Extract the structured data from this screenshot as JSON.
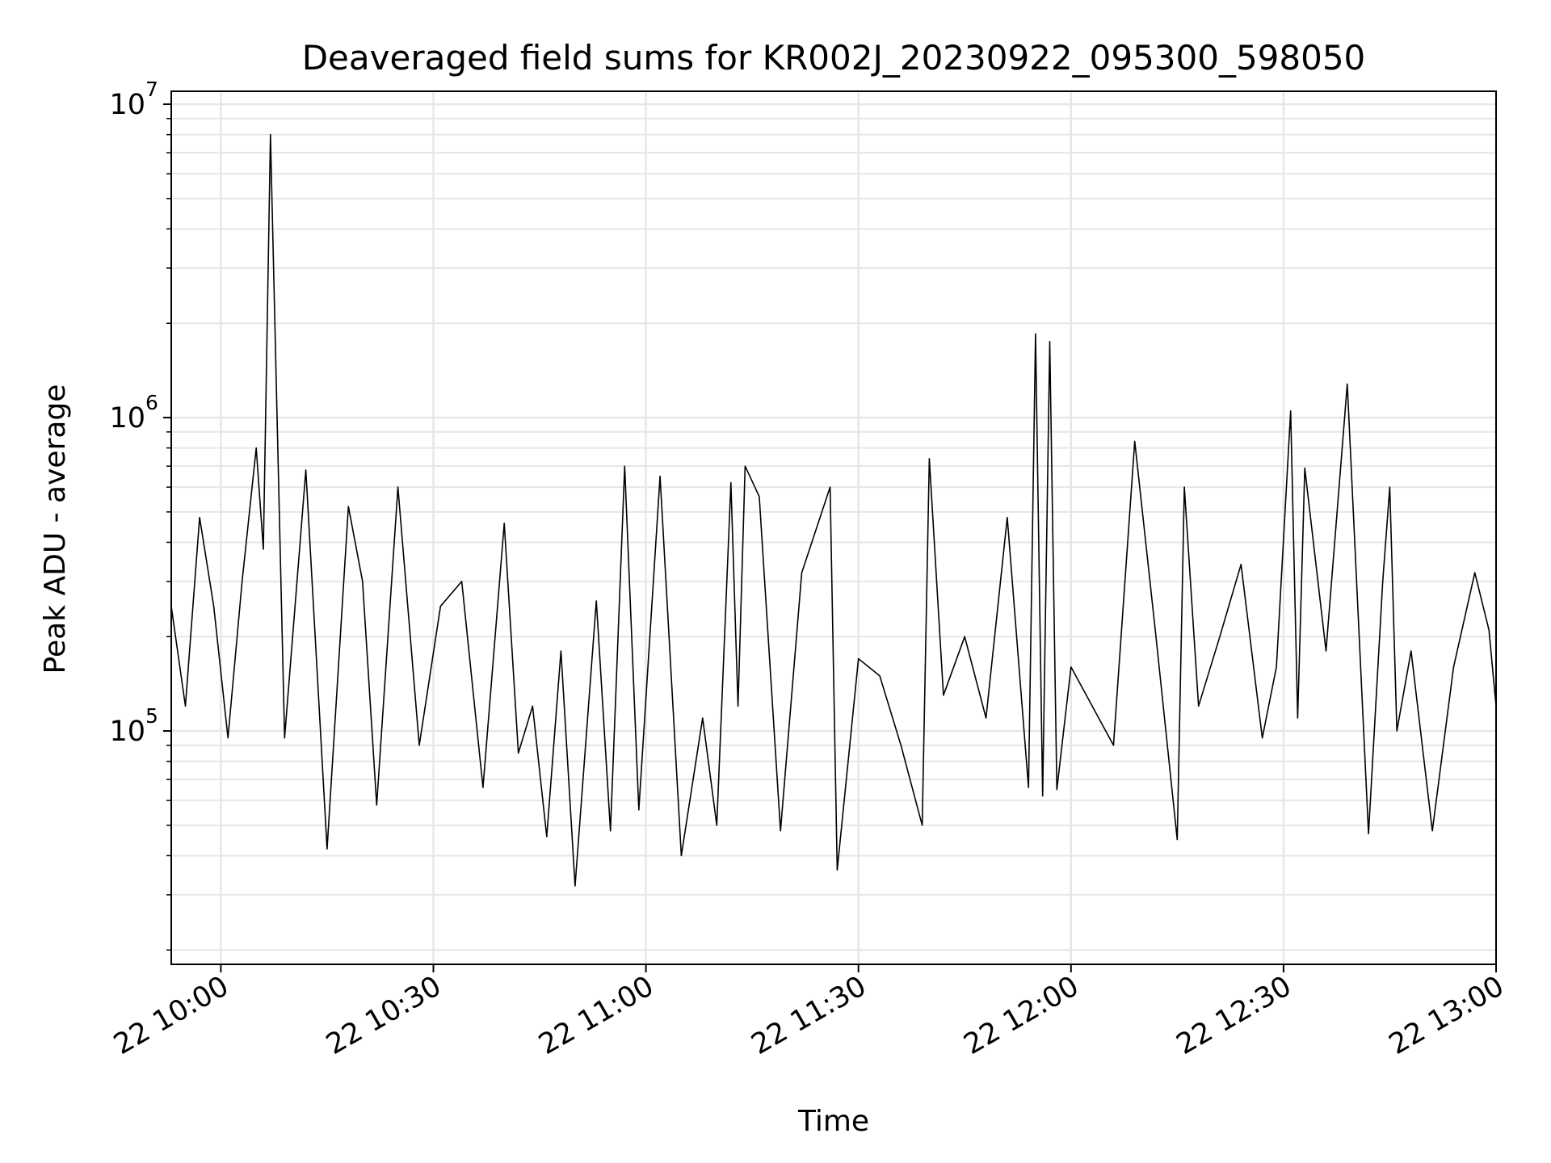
{
  "chart_data": {
    "type": "line",
    "title": "Deaveraged field sums for KR002J_20230922_095300_598050",
    "xlabel": "Time",
    "ylabel": "Peak ADU - average",
    "yscale": "log",
    "ylim": [
      18000,
      11000000
    ],
    "xlim": [
      "2023-09-22 09:53",
      "2023-09-22 13:00"
    ],
    "grid": true,
    "x_ticks": [
      {
        "label": "22 10:00",
        "value": "2023-09-22 10:00"
      },
      {
        "label": "22 10:30",
        "value": "2023-09-22 10:30"
      },
      {
        "label": "22 11:00",
        "value": "2023-09-22 11:00"
      },
      {
        "label": "22 11:30",
        "value": "2023-09-22 11:30"
      },
      {
        "label": "22 12:00",
        "value": "2023-09-22 12:00"
      },
      {
        "label": "22 12:30",
        "value": "2023-09-22 12:30"
      },
      {
        "label": "22 13:00",
        "value": "2023-09-22 13:00"
      }
    ],
    "y_ticks": [
      {
        "base": "10",
        "exp": "5",
        "value": 100000
      },
      {
        "base": "10",
        "exp": "6",
        "value": 1000000
      },
      {
        "base": "10",
        "exp": "7",
        "value": 10000000
      }
    ],
    "series_color": "#000000",
    "series": [
      {
        "x": [
          "2023-09-22 09:53",
          "2023-09-22 09:55",
          "2023-09-22 09:57",
          "2023-09-22 09:59",
          "2023-09-22 10:01",
          "2023-09-22 10:03",
          "2023-09-22 10:05",
          "2023-09-22 10:06",
          "2023-09-22 10:07",
          "2023-09-22 10:09",
          "2023-09-22 10:12",
          "2023-09-22 10:15",
          "2023-09-22 10:18",
          "2023-09-22 10:20",
          "2023-09-22 10:22",
          "2023-09-22 10:25",
          "2023-09-22 10:28",
          "2023-09-22 10:31",
          "2023-09-22 10:34",
          "2023-09-22 10:37",
          "2023-09-22 10:40",
          "2023-09-22 10:42",
          "2023-09-22 10:44",
          "2023-09-22 10:46",
          "2023-09-22 10:48",
          "2023-09-22 10:50",
          "2023-09-22 10:53",
          "2023-09-22 10:55",
          "2023-09-22 10:57",
          "2023-09-22 10:59",
          "2023-09-22 11:02",
          "2023-09-22 11:05",
          "2023-09-22 11:08",
          "2023-09-22 11:10",
          "2023-09-22 11:12",
          "2023-09-22 11:13",
          "2023-09-22 11:14",
          "2023-09-22 11:16",
          "2023-09-22 11:19",
          "2023-09-22 11:22",
          "2023-09-22 11:26",
          "2023-09-22 11:27",
          "2023-09-22 11:30",
          "2023-09-22 11:33",
          "2023-09-22 11:36",
          "2023-09-22 11:39",
          "2023-09-22 11:40",
          "2023-09-22 11:42",
          "2023-09-22 11:45",
          "2023-09-22 11:48",
          "2023-09-22 11:51",
          "2023-09-22 11:54",
          "2023-09-22 11:55",
          "2023-09-22 11:56",
          "2023-09-22 11:57",
          "2023-09-22 11:58",
          "2023-09-22 12:00",
          "2023-09-22 12:03",
          "2023-09-22 12:06",
          "2023-09-22 12:09",
          "2023-09-22 12:12",
          "2023-09-22 12:15",
          "2023-09-22 12:16",
          "2023-09-22 12:18",
          "2023-09-22 12:21",
          "2023-09-22 12:24",
          "2023-09-22 12:27",
          "2023-09-22 12:29",
          "2023-09-22 12:31",
          "2023-09-22 12:32",
          "2023-09-22 12:33",
          "2023-09-22 12:36",
          "2023-09-22 12:39",
          "2023-09-22 12:42",
          "2023-09-22 12:44",
          "2023-09-22 12:45",
          "2023-09-22 12:46",
          "2023-09-22 12:48",
          "2023-09-22 12:51",
          "2023-09-22 12:54",
          "2023-09-22 12:57",
          "2023-09-22 12:59",
          "2023-09-22 13:00"
        ],
        "y": [
          250000,
          120000,
          480000,
          250000,
          95000,
          300000,
          800000,
          380000,
          8000000,
          95000,
          680000,
          42000,
          520000,
          300000,
          58000,
          600000,
          90000,
          250000,
          300000,
          66000,
          460000,
          85000,
          120000,
          46000,
          180000,
          32000,
          260000,
          48000,
          700000,
          56000,
          650000,
          40000,
          110000,
          50000,
          620000,
          120000,
          700000,
          560000,
          48000,
          320000,
          600000,
          36000,
          170000,
          150000,
          90000,
          50000,
          740000,
          130000,
          200000,
          110000,
          480000,
          66000,
          1850000,
          62000,
          1750000,
          65000,
          160000,
          120000,
          90000,
          840000,
          200000,
          45000,
          600000,
          120000,
          200000,
          340000,
          95000,
          160000,
          1050000,
          110000,
          690000,
          180000,
          1280000,
          47000,
          300000,
          600000,
          100000,
          180000,
          48000,
          160000,
          320000,
          210000,
          120000
        ]
      }
    ]
  }
}
